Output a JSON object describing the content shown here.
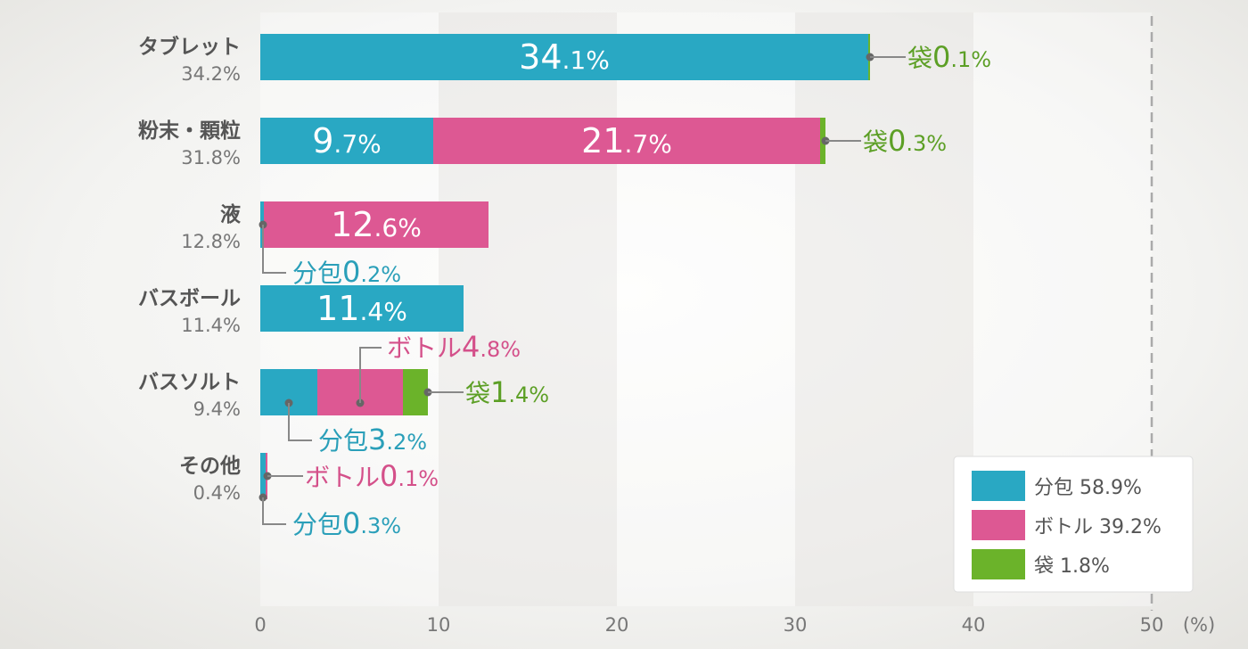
{
  "chart_data": {
    "type": "bar",
    "orientation": "horizontal",
    "stacked": true,
    "unit": "(%)",
    "xlim": [
      0,
      50
    ],
    "xticks": [
      "0",
      "10",
      "20",
      "30",
      "40",
      "50"
    ],
    "grid": false,
    "legend_position": "bottom-right",
    "colors": {
      "bunpo": "#29a8c3",
      "bottle": "#dd5893",
      "fukuro": "#6bb32a"
    },
    "legend": [
      {
        "key": "bunpo",
        "text": "分包 58.9%"
      },
      {
        "key": "bottle",
        "text": "ボトル 39.2%"
      },
      {
        "key": "fukuro",
        "text": "袋 1.8%"
      }
    ],
    "categories": [
      {
        "name": "タブレット",
        "total": "34.2%",
        "segments": [
          {
            "key": "bunpo",
            "value": 34.1,
            "text": "34.1%",
            "label": "inside"
          },
          {
            "key": "fukuro",
            "value": 0.1,
            "text": "袋0.1%",
            "label": "right"
          }
        ]
      },
      {
        "name": "粉末・顆粒",
        "total": "31.8%",
        "segments": [
          {
            "key": "bunpo",
            "value": 9.7,
            "text": "9.7%",
            "label": "inside"
          },
          {
            "key": "bottle",
            "value": 21.7,
            "text": "21.7%",
            "label": "inside"
          },
          {
            "key": "fukuro",
            "value": 0.3,
            "text": "袋0.3%",
            "label": "right"
          }
        ]
      },
      {
        "name": "液",
        "total": "12.8%",
        "segments": [
          {
            "key": "bunpo",
            "value": 0.2,
            "text": "分包0.2%",
            "label": "below"
          },
          {
            "key": "bottle",
            "value": 12.6,
            "text": "12.6%",
            "label": "inside"
          }
        ]
      },
      {
        "name": "バスボール",
        "total": "11.4%",
        "segments": [
          {
            "key": "bunpo",
            "value": 11.4,
            "text": "11.4%",
            "label": "inside"
          }
        ]
      },
      {
        "name": "バスソルト",
        "total": "9.4%",
        "segments": [
          {
            "key": "bunpo",
            "value": 3.2,
            "text": "分包3.2%",
            "label": "below"
          },
          {
            "key": "bottle",
            "value": 4.8,
            "text": "ボトル4.8%",
            "label": "above"
          },
          {
            "key": "fukuro",
            "value": 1.4,
            "text": "袋1.4%",
            "label": "right"
          }
        ]
      },
      {
        "name": "その他",
        "total": "0.4%",
        "segments": [
          {
            "key": "bunpo",
            "value": 0.3,
            "text": "分包0.3%",
            "label": "below"
          },
          {
            "key": "bottle",
            "value": 0.1,
            "text": "ボトル0.1%",
            "label": "right"
          }
        ]
      }
    ]
  }
}
